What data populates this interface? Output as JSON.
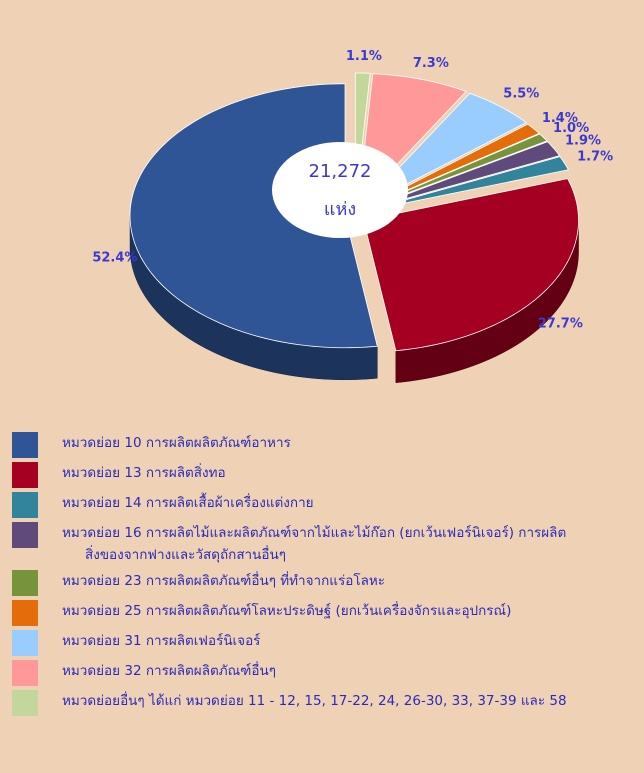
{
  "chart_data": {
    "type": "pie3d",
    "center_label": "21,272",
    "center_unit": "แห่ง",
    "categories": [
      "หมวดย่อย 10 การผลิตผลิตภัณฑ์อาหาร",
      "หมวดย่อย 13 การผลิตสิ่งทอ",
      "หมวดย่อย 14 การผลิตเสื้อผ้าเครื่องแต่งกาย",
      "หมวดย่อย 16 การผลิตไม้และผลิตภัณฑ์จากไม้และไม้ก๊อก (ยกเว้นเฟอร์นิเจอร์) การผลิตสิ่งของจากฟางและวัสดุถักสานอื่นๆ",
      "หมวดย่อย 23 การผลิตผลิตภัณฑ์อื่นๆ ที่ทำจากแร่อโลหะ",
      "หมวดย่อย 25 การผลิตผลิตภัณฑ์โลหะประดิษฐ์ (ยกเว้นเครื่องจักรและอุปกรณ์)",
      "หมวดย่อย 31 การผลิตเฟอร์นิเจอร์",
      "หมวดย่อย 32 การผลิตผลิตภัณฑ์อื่นๆ",
      "หมวดย่อยอื่นๆ ได้แก่ หมวดย่อย 11 - 12, 15, 17-22, 24, 26-30, 33, 37-39 และ 58"
    ],
    "values": [
      52.4,
      27.7,
      1.7,
      1.9,
      1.0,
      1.4,
      5.5,
      7.3,
      1.1
    ],
    "value_labels": [
      "52.4%",
      "27.7%",
      "1.7%",
      "1.9%",
      "1.0%",
      "1.4%",
      "5.5%",
      "7.3%",
      "1.1%"
    ],
    "colors": [
      "#2f5597",
      "#a50021",
      "#31849b",
      "#604a7b",
      "#77933c",
      "#e46c0a",
      "#99ccff",
      "#ff9999",
      "#c3d69b"
    ]
  }
}
